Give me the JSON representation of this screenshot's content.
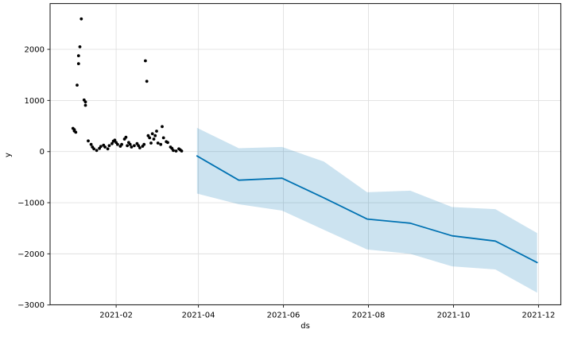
{
  "chart_data": {
    "type": "line",
    "overlays": [
      "scatter",
      "confidence-band"
    ],
    "title": "",
    "xlabel": "ds",
    "ylabel": "y",
    "grid": true,
    "legend_position": "none",
    "x_epoch": "2021-01-01",
    "xlim_days": [
      -16.4,
      350.0
    ],
    "ylim": [
      -2997,
      2895
    ],
    "x_ticks": [
      "2021-02",
      "2021-04",
      "2021-06",
      "2021-08",
      "2021-10",
      "2021-12"
    ],
    "y_ticks": [
      {
        "value": -3000,
        "label": "−3000"
      },
      {
        "value": -2000,
        "label": "−2000"
      },
      {
        "value": -1000,
        "label": "−1000"
      },
      {
        "value": 0,
        "label": "0"
      },
      {
        "value": 1000,
        "label": "1000"
      },
      {
        "value": 2000,
        "label": "2000"
      }
    ],
    "colors": {
      "points": "#000000",
      "line": "#0072B2",
      "band": "#0072B2",
      "band_opacity": 0.2,
      "grid": "#e0e0e0",
      "spine": "#262626",
      "text": "#000000",
      "background": "#ffffff"
    },
    "history": {
      "ds": [
        "2021-01-01",
        "2021-01-02",
        "2021-01-02",
        "2021-01-03",
        "2021-01-04",
        "2021-01-05",
        "2021-01-05",
        "2021-01-06",
        "2021-01-07",
        "2021-01-09",
        "2021-01-10",
        "2021-01-10",
        "2021-01-12",
        "2021-01-14",
        "2021-01-15",
        "2021-01-16",
        "2021-01-18",
        "2021-01-20",
        "2021-01-21",
        "2021-01-23",
        "2021-01-24",
        "2021-01-26",
        "2021-01-27",
        "2021-01-29",
        "2021-01-30",
        "2021-01-31",
        "2021-02-01",
        "2021-02-02",
        "2021-02-04",
        "2021-02-05",
        "2021-02-07",
        "2021-02-08",
        "2021-02-09",
        "2021-02-10",
        "2021-02-11",
        "2021-02-12",
        "2021-02-14",
        "2021-02-16",
        "2021-02-17",
        "2021-02-18",
        "2021-02-20",
        "2021-02-21",
        "2021-02-22",
        "2021-02-23",
        "2021-02-24",
        "2021-02-25",
        "2021-02-26",
        "2021-02-27",
        "2021-02-28",
        "2021-03-01",
        "2021-03-02",
        "2021-03-03",
        "2021-03-05",
        "2021-03-06",
        "2021-03-07",
        "2021-03-09",
        "2021-03-10",
        "2021-03-12",
        "2021-03-13",
        "2021-03-14",
        "2021-03-16",
        "2021-03-18",
        "2021-03-19",
        "2021-03-20"
      ],
      "y": [
        455,
        430,
        405,
        378,
        1300,
        1720,
        1875,
        2050,
        2595,
        1010,
        905,
        970,
        208,
        140,
        89,
        53,
        22,
        62,
        100,
        124,
        89,
        53,
        115,
        155,
        202,
        224,
        177,
        140,
        104,
        140,
        244,
        280,
        115,
        177,
        140,
        89,
        115,
        155,
        115,
        73,
        104,
        140,
        1775,
        1375,
        311,
        270,
        166,
        348,
        244,
        311,
        400,
        166,
        140,
        488,
        270,
        193,
        177,
        89,
        62,
        22,
        11,
        53,
        34,
        11
      ]
    },
    "forecast": {
      "ds": [
        "2021-03-31",
        "2021-04-30",
        "2021-05-31",
        "2021-06-30",
        "2021-07-31",
        "2021-08-31",
        "2021-09-30",
        "2021-10-31",
        "2021-11-30"
      ],
      "yhat": [
        -85,
        -560,
        -520,
        -905,
        -1320,
        -1400,
        -1648,
        -1750,
        -2170
      ],
      "yhat_lower": [
        -820,
        -1030,
        -1155,
        -1530,
        -1915,
        -2000,
        -2245,
        -2305,
        -2760
      ],
      "yhat_upper": [
        465,
        65,
        90,
        -195,
        -795,
        -765,
        -1085,
        -1125,
        -1595
      ]
    }
  }
}
